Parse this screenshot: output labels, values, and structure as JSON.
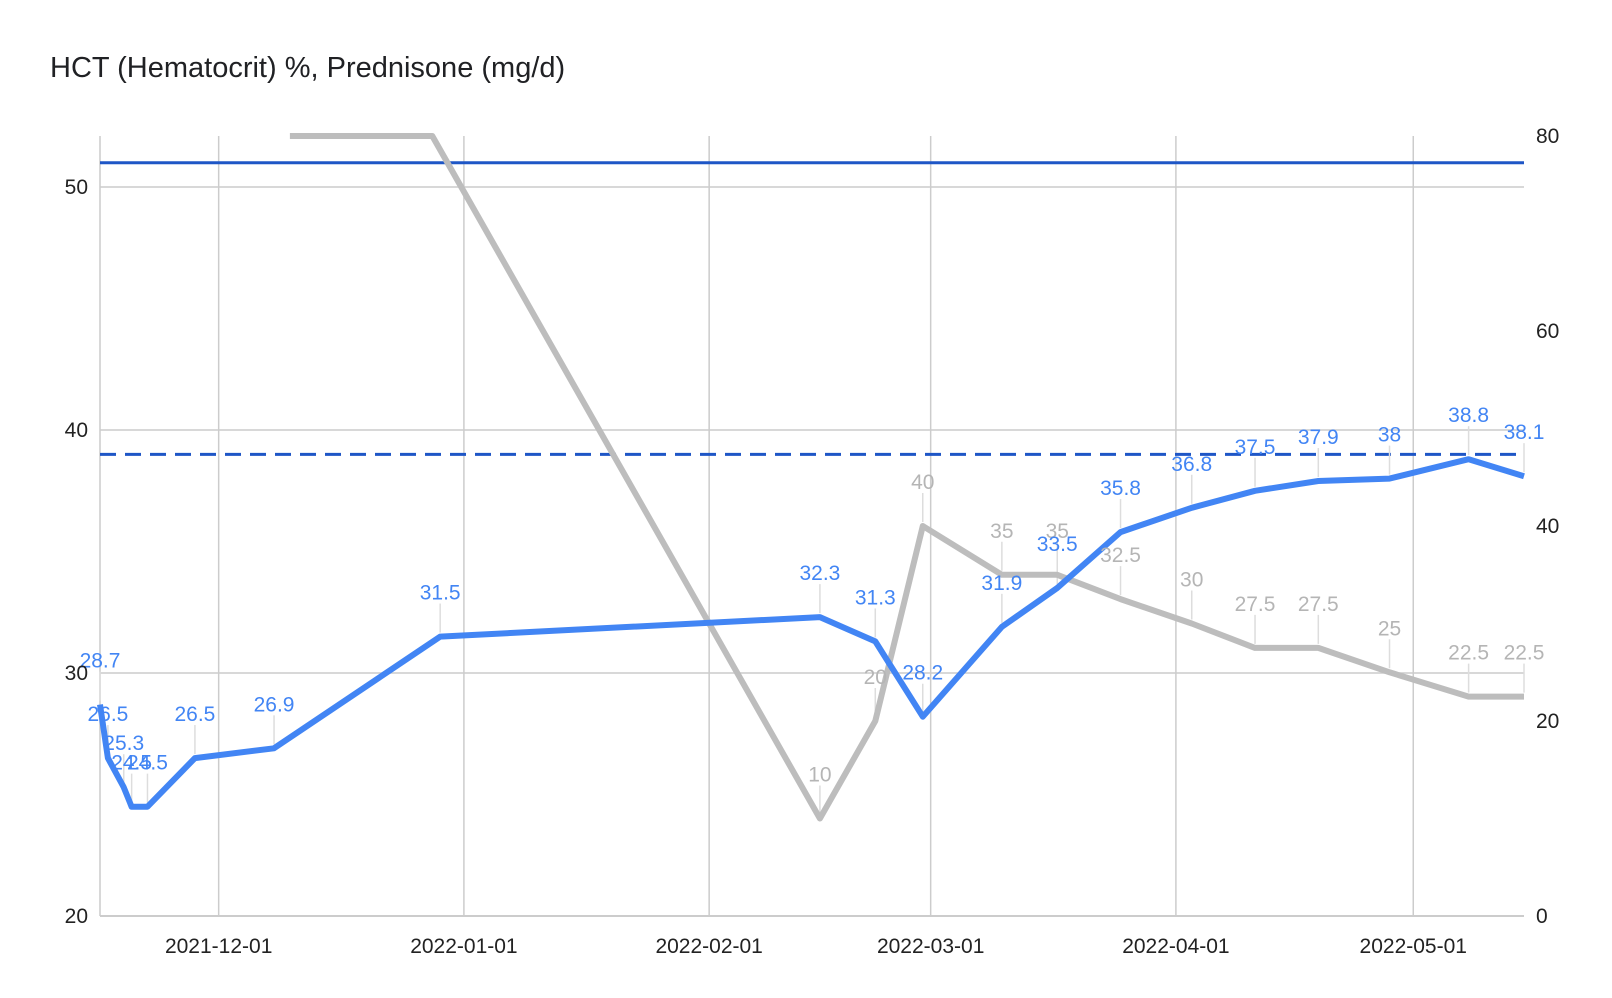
{
  "chart_data": {
    "type": "line",
    "title": "HCT (Hematocrit) %, Prednisone (mg/d)",
    "xlabel": "",
    "ylabel_left": "",
    "ylabel_right": "",
    "x_domain": [
      "2021-11-16",
      "2022-05-15"
    ],
    "x_ticks": [
      "2021-12-01",
      "2022-01-01",
      "2022-02-01",
      "2022-03-01",
      "2022-04-01",
      "2022-05-01"
    ],
    "y_left": {
      "range": [
        20,
        52.1
      ],
      "ticks": [
        20,
        30,
        40,
        50
      ]
    },
    "y_right": {
      "range": [
        0,
        80
      ],
      "ticks": [
        0,
        20,
        40,
        60,
        80
      ]
    },
    "grid": true,
    "colors": {
      "hct": "#4285f4",
      "prednisone": "#bdbdbd",
      "reference": "#1e56c6",
      "grid": "#cccccc"
    },
    "reference_lines": [
      {
        "axis": "left",
        "value": 51,
        "style": "solid"
      },
      {
        "axis": "left",
        "value": 39,
        "style": "dashed"
      }
    ],
    "series": [
      {
        "axis": "left",
        "points": [
          {
            "x": "2021-11-16",
            "y": 28.7
          },
          {
            "x": "2021-11-17",
            "y": 26.5
          },
          {
            "x": "2021-11-19",
            "y": 25.3
          },
          {
            "x": "2021-11-20",
            "y": 24.5
          },
          {
            "x": "2021-11-22",
            "y": 24.5
          },
          {
            "x": "2021-11-28",
            "y": 26.5
          },
          {
            "x": "2021-12-08",
            "y": 26.9
          },
          {
            "x": "2021-12-29",
            "y": 31.5
          },
          {
            "x": "2022-02-15",
            "y": 32.3
          },
          {
            "x": "2022-02-22",
            "y": 31.3
          },
          {
            "x": "2022-02-28",
            "y": 28.2
          },
          {
            "x": "2022-03-10",
            "y": 31.9
          },
          {
            "x": "2022-03-17",
            "y": 33.5
          },
          {
            "x": "2022-03-25",
            "y": 35.8
          },
          {
            "x": "2022-04-03",
            "y": 36.8
          },
          {
            "x": "2022-04-11",
            "y": 37.5
          },
          {
            "x": "2022-04-19",
            "y": 37.9
          },
          {
            "x": "2022-04-28",
            "y": 38
          },
          {
            "x": "2022-05-08",
            "y": 38.8
          },
          {
            "x": "2022-05-15",
            "y": 38.1
          }
        ],
        "labels": [
          "28.7",
          "26.5",
          "25.3",
          "24.5",
          "24.5",
          "26.5",
          "26.9",
          "31.5",
          "32.3",
          "31.3",
          "28.2",
          "31.9",
          "33.5",
          "35.8",
          "36.8",
          "37.5",
          "37.9",
          "38",
          "38.8",
          "38.1"
        ]
      },
      {
        "axis": "right",
        "points": [
          {
            "x": "2021-12-10",
            "y": 80
          },
          {
            "x": "2021-12-28",
            "y": 80
          },
          {
            "x": "2022-02-15",
            "y": 10
          },
          {
            "x": "2022-02-22",
            "y": 20
          },
          {
            "x": "2022-02-28",
            "y": 40
          },
          {
            "x": "2022-03-10",
            "y": 35
          },
          {
            "x": "2022-03-17",
            "y": 35
          },
          {
            "x": "2022-03-25",
            "y": 32.5
          },
          {
            "x": "2022-04-03",
            "y": 30
          },
          {
            "x": "2022-04-11",
            "y": 27.5
          },
          {
            "x": "2022-04-19",
            "y": 27.5
          },
          {
            "x": "2022-04-28",
            "y": 25
          },
          {
            "x": "2022-05-08",
            "y": 22.5
          },
          {
            "x": "2022-05-15",
            "y": 22.5
          }
        ],
        "labels": [
          "",
          "",
          "10",
          "20",
          "40",
          "35",
          "35",
          "32.5",
          "30",
          "27.5",
          "27.5",
          "25",
          "22.5",
          "22.5"
        ]
      }
    ]
  }
}
